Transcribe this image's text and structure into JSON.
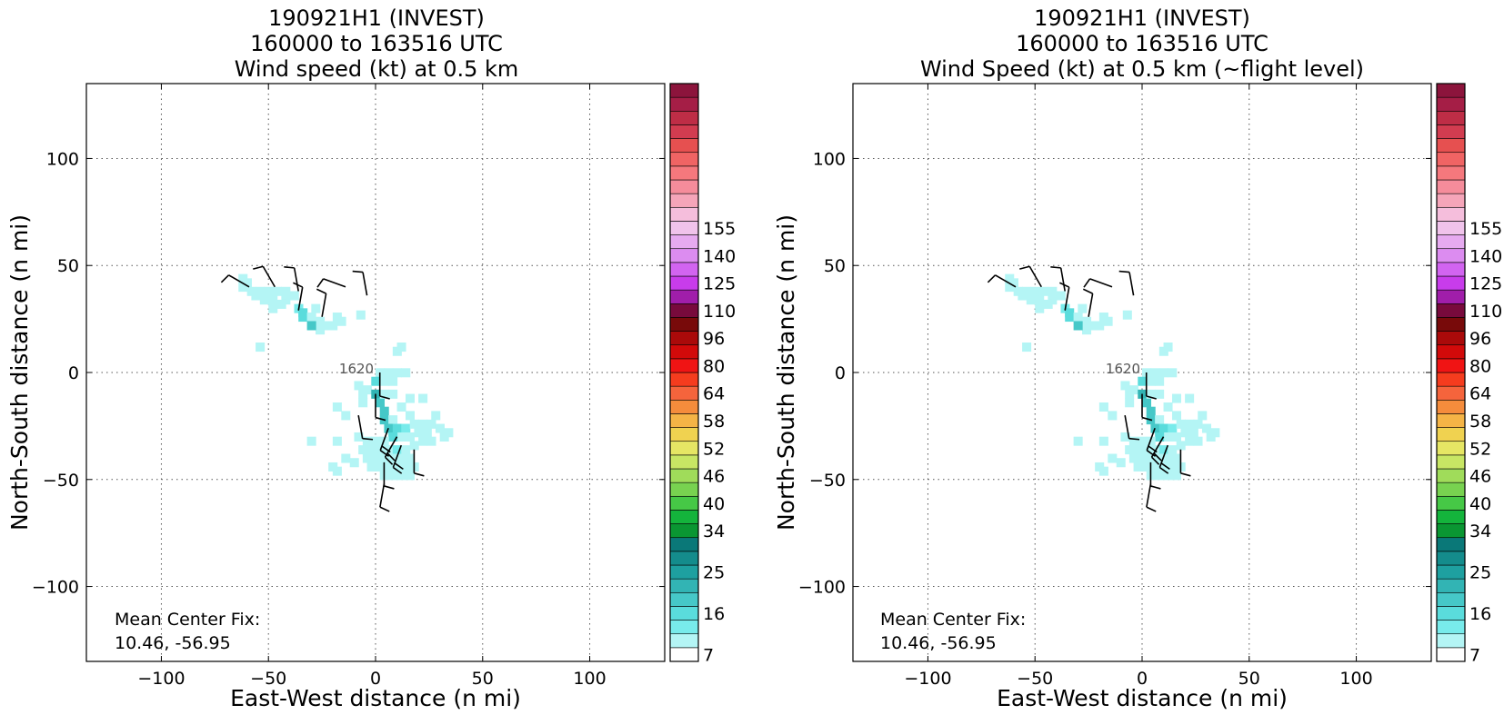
{
  "figure": {
    "panels": [
      {
        "title_lines": [
          "190921H1 (INVEST)",
          "160000 to 163516 UTC",
          "Wind speed (kt) at 0.5 km"
        ],
        "xlabel": "East-West distance (n mi)",
        "ylabel": "North-South distance (n mi)",
        "center_fix_label": "Mean Center Fix:",
        "center_fix_value": "10.46, -56.95",
        "time_label": "1620"
      },
      {
        "title_lines": [
          "190921H1 (INVEST)",
          "160000 to 163516 UTC",
          "Wind Speed (kt) at 0.5 km (~flight level)"
        ],
        "xlabel": "East-West distance (n mi)",
        "ylabel": "North-South distance (n mi)",
        "center_fix_label": "Mean Center Fix:",
        "center_fix_value": "10.46, -56.95",
        "time_label": "1620"
      }
    ]
  },
  "chart_data": {
    "type": "heatmap",
    "xlim": [
      -135,
      135
    ],
    "ylim": [
      -135,
      135
    ],
    "xticks": [
      -100,
      -50,
      0,
      50,
      100
    ],
    "yticks": [
      -100,
      -50,
      0,
      50,
      100
    ],
    "xtick_labels": [
      "−100",
      "−50",
      "0",
      "50",
      "100"
    ],
    "ytick_labels": [
      "−100",
      "−50",
      "0",
      "50",
      "100"
    ],
    "grid": true,
    "colorbar": {
      "colors": [
        "#ffffff",
        "#b4f5f5",
        "#78ebeb",
        "#5adcdc",
        "#46c8c8",
        "#32b4b4",
        "#1ea0a0",
        "#148c8c",
        "#0a7878",
        "#0a9632",
        "#14b43c",
        "#46c846",
        "#78d250",
        "#a0dc5a",
        "#c8e664",
        "#e6e664",
        "#f0d250",
        "#f5b446",
        "#f58c3c",
        "#f5643c",
        "#f53c1e",
        "#f01414",
        "#d20a0a",
        "#aa0a0a",
        "#780a0a",
        "#780a3c",
        "#a01eaa",
        "#c83ceb",
        "#d264f0",
        "#dc8cf0",
        "#e6aaf0",
        "#f0c3eb",
        "#f5bedc",
        "#f5a5b9",
        "#f58c9b",
        "#f5787d",
        "#f06464",
        "#e65050",
        "#d23c50",
        "#be2d46",
        "#a51e46",
        "#8c143c"
      ],
      "tick_labels": [
        "7",
        "16",
        "25",
        "34",
        "40",
        "46",
        "52",
        "58",
        "64",
        "80",
        "96",
        "110",
        "125",
        "140",
        "155"
      ],
      "tick_label_bins": [
        0,
        3,
        6,
        9,
        11,
        13,
        15,
        17,
        19,
        21,
        23,
        25,
        27,
        29,
        31
      ]
    },
    "wind_cells": [
      {
        "x": -62,
        "y": 40,
        "kt": 14
      },
      {
        "x": -60,
        "y": 42,
        "kt": 14
      },
      {
        "x": -62,
        "y": 44,
        "kt": 12
      },
      {
        "x": -58,
        "y": 38,
        "kt": 14
      },
      {
        "x": -54,
        "y": 38,
        "kt": 14
      },
      {
        "x": -50,
        "y": 38,
        "kt": 14
      },
      {
        "x": -56,
        "y": 36,
        "kt": 14
      },
      {
        "x": -52,
        "y": 34,
        "kt": 14
      },
      {
        "x": -48,
        "y": 34,
        "kt": 14
      },
      {
        "x": -46,
        "y": 38,
        "kt": 12
      },
      {
        "x": -42,
        "y": 38,
        "kt": 14
      },
      {
        "x": -42,
        "y": 34,
        "kt": 12
      },
      {
        "x": -38,
        "y": 36,
        "kt": 10
      },
      {
        "x": -48,
        "y": 30,
        "kt": 12
      },
      {
        "x": -44,
        "y": 32,
        "kt": 10
      },
      {
        "x": -36,
        "y": 30,
        "kt": 16
      },
      {
        "x": -34,
        "y": 28,
        "kt": 20
      },
      {
        "x": -34,
        "y": 26,
        "kt": 18
      },
      {
        "x": -30,
        "y": 26,
        "kt": 12
      },
      {
        "x": -26,
        "y": 24,
        "kt": 10
      },
      {
        "x": -28,
        "y": 30,
        "kt": 10
      },
      {
        "x": -24,
        "y": 22,
        "kt": 10
      },
      {
        "x": -20,
        "y": 22,
        "kt": 9
      },
      {
        "x": -18,
        "y": 26,
        "kt": 9
      },
      {
        "x": -16,
        "y": 24,
        "kt": 9
      },
      {
        "x": -26,
        "y": 20,
        "kt": 9
      },
      {
        "x": -30,
        "y": 22,
        "kt": 22
      },
      {
        "x": -54,
        "y": 12,
        "kt": 9
      },
      {
        "x": -7,
        "y": 27,
        "kt": 9
      },
      {
        "x": 10,
        "y": 10,
        "kt": 12
      },
      {
        "x": 12,
        "y": 12,
        "kt": 10
      },
      {
        "x": 2,
        "y": 0,
        "kt": 14
      },
      {
        "x": 6,
        "y": 0,
        "kt": 14
      },
      {
        "x": 10,
        "y": 0,
        "kt": 12
      },
      {
        "x": 14,
        "y": 0,
        "kt": 10
      },
      {
        "x": 0,
        "y": -4,
        "kt": 18
      },
      {
        "x": 4,
        "y": -4,
        "kt": 14
      },
      {
        "x": 8,
        "y": -4,
        "kt": 12
      },
      {
        "x": -8,
        "y": -6,
        "kt": 9
      },
      {
        "x": -6,
        "y": -10,
        "kt": 9
      },
      {
        "x": -4,
        "y": -8,
        "kt": 10
      },
      {
        "x": 0,
        "y": -10,
        "kt": 26
      },
      {
        "x": 2,
        "y": -14,
        "kt": 22
      },
      {
        "x": 4,
        "y": -10,
        "kt": 12
      },
      {
        "x": 8,
        "y": -10,
        "kt": 10
      },
      {
        "x": -6,
        "y": -14,
        "kt": 10
      },
      {
        "x": 4,
        "y": -18,
        "kt": 24
      },
      {
        "x": 4,
        "y": -22,
        "kt": 22
      },
      {
        "x": 8,
        "y": -22,
        "kt": 14
      },
      {
        "x": 6,
        "y": -26,
        "kt": 22
      },
      {
        "x": 10,
        "y": -26,
        "kt": 20
      },
      {
        "x": 14,
        "y": -26,
        "kt": 16
      },
      {
        "x": 18,
        "y": -24,
        "kt": 14
      },
      {
        "x": 22,
        "y": -24,
        "kt": 14
      },
      {
        "x": 26,
        "y": -24,
        "kt": 14
      },
      {
        "x": 30,
        "y": -26,
        "kt": 14
      },
      {
        "x": 34,
        "y": -28,
        "kt": 12
      },
      {
        "x": 28,
        "y": -20,
        "kt": 12
      },
      {
        "x": 32,
        "y": -30,
        "kt": 12
      },
      {
        "x": 24,
        "y": -28,
        "kt": 14
      },
      {
        "x": 20,
        "y": -28,
        "kt": 14
      },
      {
        "x": 16,
        "y": -30,
        "kt": 14
      },
      {
        "x": 12,
        "y": -30,
        "kt": 14
      },
      {
        "x": 8,
        "y": -30,
        "kt": 20
      },
      {
        "x": 4,
        "y": -32,
        "kt": 14
      },
      {
        "x": 0,
        "y": -32,
        "kt": 14
      },
      {
        "x": -4,
        "y": -32,
        "kt": 12
      },
      {
        "x": -8,
        "y": -30,
        "kt": 10
      },
      {
        "x": -6,
        "y": -36,
        "kt": 14
      },
      {
        "x": -2,
        "y": -36,
        "kt": 14
      },
      {
        "x": 2,
        "y": -36,
        "kt": 14
      },
      {
        "x": 6,
        "y": -36,
        "kt": 14
      },
      {
        "x": 10,
        "y": -36,
        "kt": 16
      },
      {
        "x": 14,
        "y": -36,
        "kt": 14
      },
      {
        "x": 18,
        "y": -34,
        "kt": 14
      },
      {
        "x": 22,
        "y": -32,
        "kt": 14
      },
      {
        "x": 26,
        "y": -32,
        "kt": 12
      },
      {
        "x": -4,
        "y": -40,
        "kt": 14
      },
      {
        "x": 0,
        "y": -40,
        "kt": 14
      },
      {
        "x": 4,
        "y": -40,
        "kt": 14
      },
      {
        "x": 8,
        "y": -40,
        "kt": 14
      },
      {
        "x": 12,
        "y": -40,
        "kt": 14
      },
      {
        "x": 16,
        "y": -40,
        "kt": 14
      },
      {
        "x": 18,
        "y": -44,
        "kt": 14
      },
      {
        "x": -2,
        "y": -44,
        "kt": 14
      },
      {
        "x": 2,
        "y": -44,
        "kt": 14
      },
      {
        "x": 6,
        "y": -44,
        "kt": 14
      },
      {
        "x": 10,
        "y": -44,
        "kt": 14
      },
      {
        "x": 14,
        "y": -44,
        "kt": 14
      },
      {
        "x": 4,
        "y": -48,
        "kt": 14
      },
      {
        "x": 8,
        "y": -48,
        "kt": 14
      },
      {
        "x": 12,
        "y": -48,
        "kt": 14
      },
      {
        "x": 16,
        "y": -48,
        "kt": 12
      },
      {
        "x": -10,
        "y": -42,
        "kt": 10
      },
      {
        "x": -20,
        "y": -44,
        "kt": 9
      },
      {
        "x": -18,
        "y": -46,
        "kt": 9
      },
      {
        "x": -18,
        "y": -32,
        "kt": 9
      },
      {
        "x": -14,
        "y": -40,
        "kt": 10
      },
      {
        "x": 16,
        "y": -12,
        "kt": 9
      },
      {
        "x": 12,
        "y": -16,
        "kt": 9
      },
      {
        "x": 16,
        "y": -20,
        "kt": 9
      },
      {
        "x": 22,
        "y": -12,
        "kt": 9
      },
      {
        "x": -18,
        "y": -16,
        "kt": 9
      },
      {
        "x": -14,
        "y": -20,
        "kt": 9
      },
      {
        "x": -30,
        "y": -32,
        "kt": 8
      }
    ],
    "wind_barbs": [
      {
        "x": -59,
        "y": 40,
        "dir": 300,
        "kt": 10
      },
      {
        "x": -47,
        "y": 40,
        "dir": 330,
        "kt": 10
      },
      {
        "x": -36,
        "y": 38,
        "dir": 350,
        "kt": 10
      },
      {
        "x": -36,
        "y": 29,
        "dir": 10,
        "kt": 10
      },
      {
        "x": -25,
        "y": 26,
        "dir": 10,
        "kt": 10
      },
      {
        "x": -14,
        "y": 40,
        "dir": 290,
        "kt": 10
      },
      {
        "x": -4,
        "y": 36,
        "dir": 350,
        "kt": 10
      },
      {
        "x": 2,
        "y": 0,
        "dir": 180,
        "kt": 10
      },
      {
        "x": 0,
        "y": -10,
        "dir": 180,
        "kt": 10
      },
      {
        "x": -8,
        "y": -20,
        "dir": 170,
        "kt": 10
      },
      {
        "x": 6,
        "y": -26,
        "dir": 200,
        "kt": 20
      },
      {
        "x": 10,
        "y": -30,
        "dir": 210,
        "kt": 20
      },
      {
        "x": 12,
        "y": -34,
        "dir": 200,
        "kt": 20
      },
      {
        "x": 18,
        "y": -36,
        "dir": 180,
        "kt": 10
      },
      {
        "x": 4,
        "y": -42,
        "dir": 180,
        "kt": 10
      },
      {
        "x": 4,
        "y": -52,
        "dir": 190,
        "kt": 10
      }
    ]
  }
}
